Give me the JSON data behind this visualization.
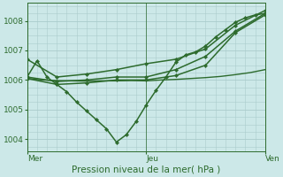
{
  "bg_color": "#cce8e8",
  "grid_color": "#aacccc",
  "line_color": "#2d6b2d",
  "xlabel": "Pression niveau de la mer( hPa )",
  "xlabel_color": "#2d6b2d",
  "xlim": [
    0,
    48
  ],
  "ylim": [
    1003.6,
    1008.6
  ],
  "yticks": [
    1004,
    1005,
    1006,
    1007,
    1008
  ],
  "xtick_positions": [
    0,
    24,
    48
  ],
  "xtick_labels": [
    "Mer",
    "Jeu",
    "Ven"
  ],
  "vlines": [
    0,
    24,
    48
  ],
  "series": [
    {
      "x": [
        0,
        2,
        4,
        6,
        8,
        10,
        12,
        14,
        16,
        18,
        20,
        22,
        24,
        26,
        28,
        30,
        32,
        34,
        36,
        38,
        40,
        42,
        44,
        46,
        48
      ],
      "y": [
        1006.1,
        1006.65,
        1006.1,
        1005.85,
        1005.6,
        1005.25,
        1004.95,
        1004.65,
        1004.35,
        1003.9,
        1004.15,
        1004.6,
        1005.15,
        1005.65,
        1006.1,
        1006.6,
        1006.85,
        1006.95,
        1007.15,
        1007.45,
        1007.7,
        1007.95,
        1008.1,
        1008.2,
        1008.25
      ],
      "marker": "D",
      "markersize": 2.2,
      "linewidth": 1.1
    },
    {
      "x": [
        0,
        3,
        6,
        9,
        12,
        15,
        18,
        21,
        24,
        27,
        30,
        33,
        36,
        39,
        42,
        45,
        48
      ],
      "y": [
        1006.05,
        1006.0,
        1005.98,
        1005.97,
        1005.96,
        1005.97,
        1005.97,
        1005.98,
        1005.97,
        1006.0,
        1006.02,
        1006.05,
        1006.08,
        1006.12,
        1006.18,
        1006.25,
        1006.35
      ],
      "marker": null,
      "markersize": 0,
      "linewidth": 1.0
    },
    {
      "x": [
        0,
        6,
        12,
        18,
        24,
        30,
        36,
        42,
        48
      ],
      "y": [
        1006.05,
        1005.85,
        1005.9,
        1006.0,
        1006.0,
        1006.15,
        1006.5,
        1007.6,
        1008.2
      ],
      "marker": "D",
      "markersize": 2.2,
      "linewidth": 1.1
    },
    {
      "x": [
        0,
        6,
        12,
        18,
        24,
        30,
        36,
        42,
        48
      ],
      "y": [
        1006.7,
        1006.1,
        1006.2,
        1006.35,
        1006.55,
        1006.7,
        1007.05,
        1007.85,
        1008.35
      ],
      "marker": "D",
      "markersize": 2.2,
      "linewidth": 1.1
    },
    {
      "x": [
        0,
        6,
        12,
        18,
        24,
        30,
        36,
        42,
        48
      ],
      "y": [
        1006.1,
        1005.95,
        1006.0,
        1006.1,
        1006.1,
        1006.35,
        1006.8,
        1007.65,
        1008.25
      ],
      "marker": "D",
      "markersize": 2.2,
      "linewidth": 1.1
    }
  ]
}
